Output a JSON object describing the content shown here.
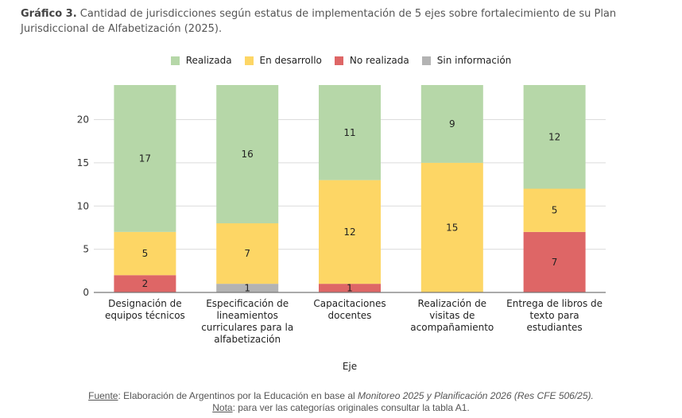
{
  "header": {
    "label": "Gráfico 3.",
    "title": "Cantidad de jurisdicciones según estatus de implementación de 5 ejes sobre fortalecimiento de su Plan Jurisdiccional de Alfabetización (2025)."
  },
  "footer": {
    "source_label": "Fuente",
    "source_text": ": Elaboración de Argentinos por la Educación en base al ",
    "source_italic": "Monitoreo 2025 y Planificación 2026 (Res CFE 506/25).",
    "note_label": "Nota",
    "note_text": ": para ver las categorías originales consultar la tabla A1."
  },
  "chart_data": {
    "type": "bar",
    "stacked": true,
    "title": "Cantidad de jurisdicciones según estatus de implementación de 5 ejes sobre fortalecimiento de su Plan Jurisdiccional de Alfabetización (2025).",
    "xlabel": "Eje",
    "ylabel": "",
    "ylim": [
      0,
      24
    ],
    "yticks": [
      0,
      5,
      10,
      15,
      20
    ],
    "grid": true,
    "legend_position": "top-center",
    "categories": [
      [
        "Designación de",
        "equipos técnicos"
      ],
      [
        "Especificación de",
        "lineamientos",
        "curriculares para la",
        "alfabetización"
      ],
      [
        "Capacitaciones",
        "docentes"
      ],
      [
        "Realización de",
        "visitas de",
        "acompañamiento"
      ],
      [
        "Entrega de libros de",
        "texto para",
        "estudiantes"
      ]
    ],
    "series": [
      {
        "name": "Sin información",
        "color": "#b3b3b3",
        "values": [
          0,
          1,
          0,
          0,
          0
        ]
      },
      {
        "name": "No realizada",
        "color": "#de6666",
        "values": [
          2,
          0,
          1,
          0,
          7
        ]
      },
      {
        "name": "En desarrollo",
        "color": "#fdd665",
        "values": [
          5,
          7,
          12,
          15,
          5
        ]
      },
      {
        "name": "Realizada",
        "color": "#b6d7a8",
        "values": [
          17,
          16,
          11,
          9,
          12
        ]
      }
    ],
    "legend_order": [
      "Realizada",
      "En desarrollo",
      "No realizada",
      "Sin información"
    ]
  }
}
